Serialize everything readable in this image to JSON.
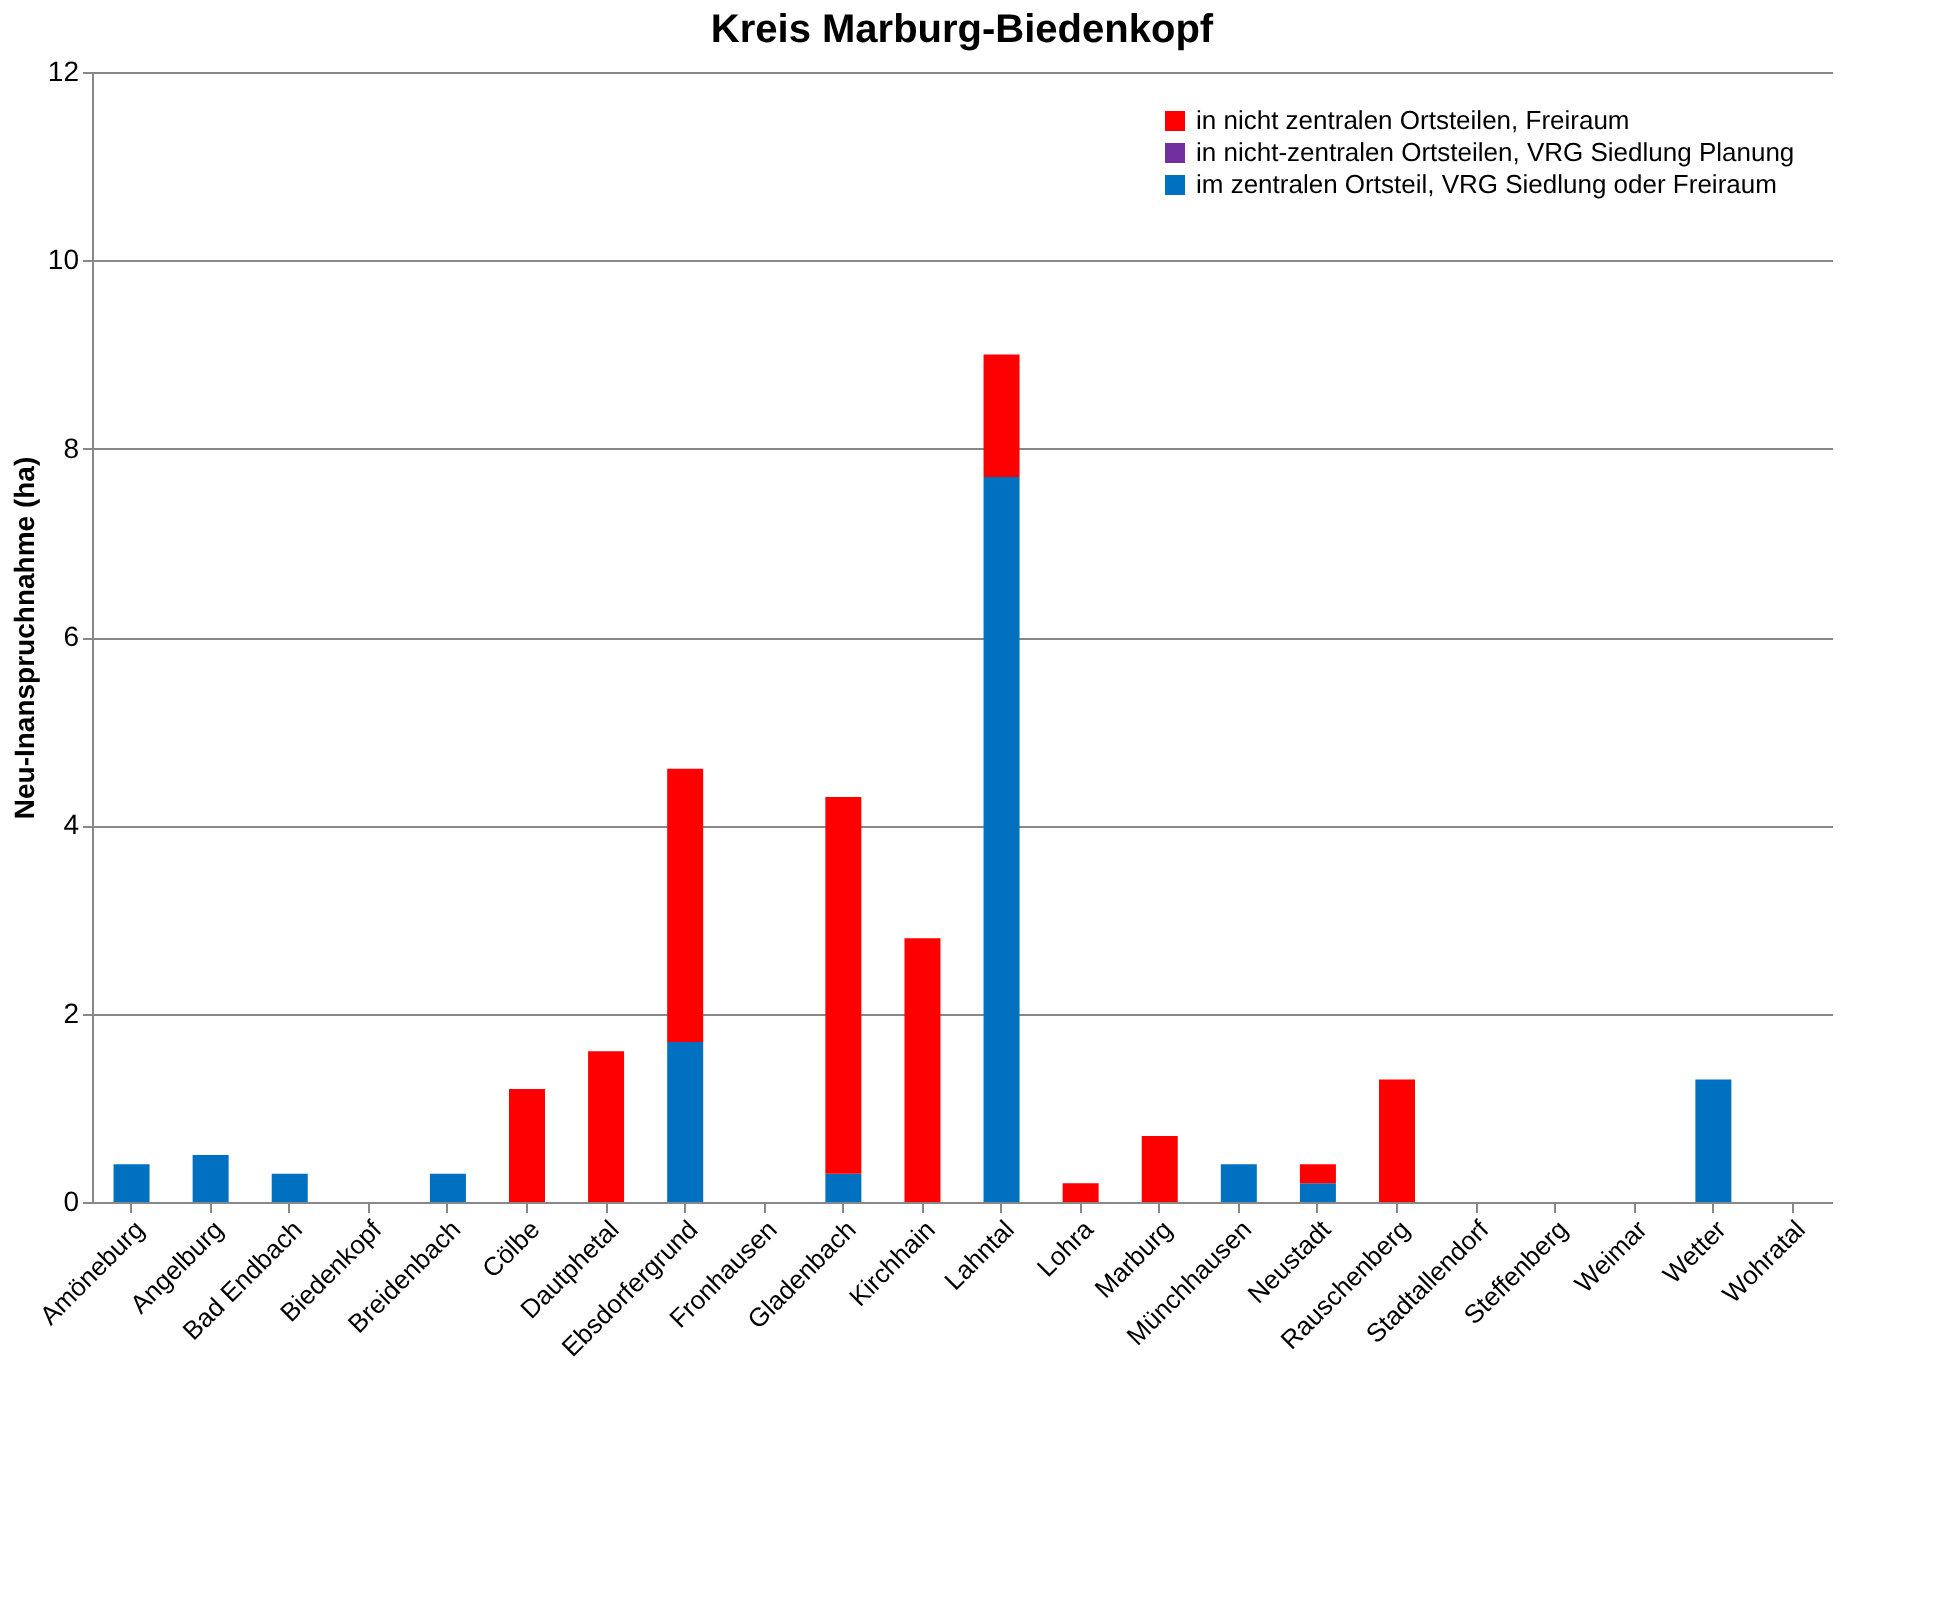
{
  "chart_data": {
    "type": "bar",
    "stacked": true,
    "title": "Kreis Marburg-Biedenkopf",
    "ylabel": "Neu-Inanspruchnahme (ha)",
    "categories": [
      "Amöneburg",
      "Angelburg",
      "Bad Endbach",
      "Biedenkopf",
      "Breidenbach",
      "Cölbe",
      "Dautphetal",
      "Ebsdorfergrund",
      "Fronhausen",
      "Gladenbach",
      "Kirchhain",
      "Lahntal",
      "Lohra",
      "Marburg",
      "Münchhausen",
      "Neustadt",
      "Rauschenberg",
      "Stadtallendorf",
      "Steffenberg",
      "Weimar",
      "Wetter",
      "Wohratal"
    ],
    "series": [
      {
        "name": "im zentralen Ortsteil, VRG Siedlung oder Freiraum",
        "color": "#0070c0",
        "values": [
          0.4,
          0.5,
          0.3,
          0,
          0.3,
          0,
          0,
          1.7,
          0,
          0.3,
          0,
          7.7,
          0,
          0,
          0.4,
          0.2,
          0,
          0,
          0,
          0,
          1.3,
          0
        ]
      },
      {
        "name": "in nicht-zentralen Ortsteilen, VRG Siedlung Planung",
        "color": "#7030a0",
        "values": [
          0,
          0,
          0,
          0,
          0,
          0,
          0,
          0,
          0,
          0,
          0,
          0,
          0,
          0,
          0,
          0,
          0,
          0,
          0,
          0,
          0,
          0
        ]
      },
      {
        "name": "in nicht zentralen Ortsteilen, Freiraum",
        "color": "#ff0000",
        "values": [
          0,
          0,
          0,
          0,
          0,
          1.2,
          1.6,
          2.9,
          0,
          4.0,
          2.8,
          1.3,
          0.2,
          0.7,
          0,
          0.2,
          1.3,
          0,
          0,
          0,
          0,
          0
        ]
      }
    ],
    "ylim": [
      0,
      12
    ],
    "yticks": [
      0,
      2,
      4,
      6,
      8,
      10,
      12
    ],
    "grid": "y",
    "legend": "top right"
  }
}
